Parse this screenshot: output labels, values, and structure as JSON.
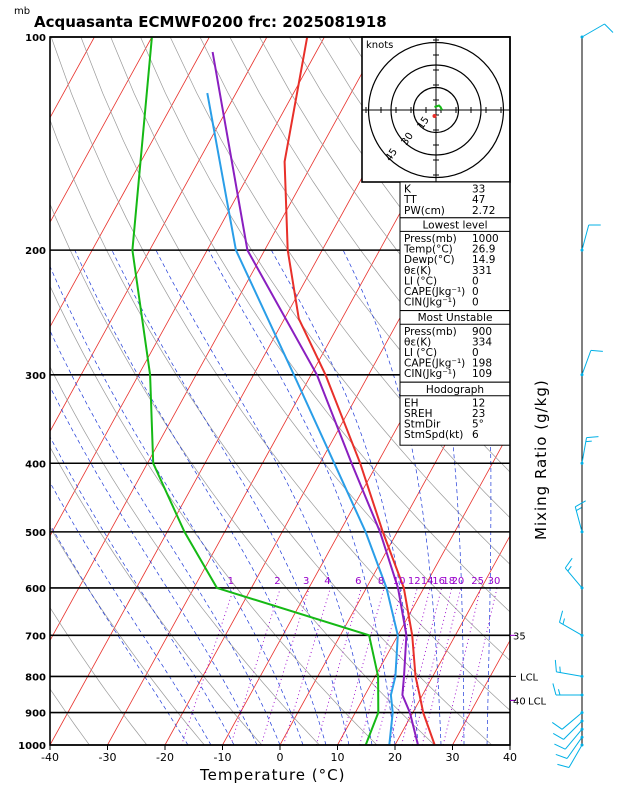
{
  "header": {
    "unit_label": "mb",
    "title": "Acquasanta ECMWF0200 frc: 2025081918"
  },
  "colors": {
    "temperature": "#e8302a",
    "dewpoint": "#15b915",
    "parcel": "#8a1fc0",
    "wetbulb": "#2a9ee8",
    "isotherm": "#e8302a",
    "dry_adiabat": "#9a9a9a",
    "moist_adiabat": "#1f3ad8",
    "mixing_ratio": "#9900cc",
    "wind": "#00b0e6"
  },
  "chart_data": {
    "type": "line",
    "title": "Acquasanta ECMWF0200 frc: 2025081918",
    "xlabel": "Temperature (°C)",
    "ylabel_right": "Mixing Ratio (g/kg)",
    "y_unit": "mb",
    "xlim": [
      -40,
      40
    ],
    "ylim": [
      1000,
      100
    ],
    "y_scale": "log",
    "x_ticks": [
      -40,
      -30,
      -20,
      -10,
      0,
      10,
      20,
      30,
      40
    ],
    "pressure_levels": [
      1000,
      900,
      800,
      700,
      600,
      500,
      400,
      300,
      200,
      100
    ],
    "pressure_labels": [
      "1000",
      "900",
      "800",
      "700",
      "600",
      "500",
      "400",
      "300",
      "200",
      "100"
    ],
    "mixing_ratio_labels": [
      "1",
      "2",
      "3",
      "4",
      "6",
      "8",
      "10",
      "12",
      "14",
      "16",
      "18",
      "20",
      "25",
      "30"
    ],
    "right_labels": {
      "lcl_upper": "LCL",
      "lcl_lower": "LCL",
      "v35": "35",
      "v40": "40"
    },
    "series": [
      {
        "name": "temperature",
        "points": [
          [
            1000,
            26.9
          ],
          [
            900,
            21.8
          ],
          [
            850,
            19.5
          ],
          [
            800,
            17.0
          ],
          [
            700,
            12.5
          ],
          [
            600,
            6.5
          ],
          [
            500,
            -2.5
          ],
          [
            400,
            -13.0
          ],
          [
            300,
            -27.5
          ],
          [
            250,
            -37.5
          ],
          [
            200,
            -46.0
          ],
          [
            150,
            -55.0
          ],
          [
            100,
            -63.0
          ]
        ]
      },
      {
        "name": "dewpoint",
        "points": [
          [
            1000,
            14.9
          ],
          [
            900,
            14.0
          ],
          [
            800,
            10.5
          ],
          [
            700,
            5.0
          ],
          [
            600,
            -26.0
          ],
          [
            500,
            -37.0
          ],
          [
            400,
            -49.0
          ],
          [
            300,
            -58.0
          ],
          [
            200,
            -73.0
          ],
          [
            100,
            -90.0
          ]
        ]
      },
      {
        "name": "wet bulb",
        "points": [
          [
            1000,
            19.0
          ],
          [
            900,
            16.5
          ],
          [
            850,
            14.5
          ],
          [
            800,
            13.5
          ],
          [
            700,
            10.0
          ],
          [
            600,
            3.5
          ],
          [
            500,
            -5.5
          ],
          [
            400,
            -17.5
          ],
          [
            300,
            -33.0
          ],
          [
            200,
            -55.0
          ],
          [
            120,
            -75.0
          ]
        ]
      },
      {
        "name": "parcel",
        "points": [
          [
            1000,
            24.0
          ],
          [
            900,
            19.5
          ],
          [
            850,
            16.5
          ],
          [
            800,
            15.0
          ],
          [
            700,
            11.5
          ],
          [
            600,
            5.5
          ],
          [
            500,
            -3.0
          ],
          [
            400,
            -14.5
          ],
          [
            300,
            -29.0
          ],
          [
            200,
            -53.0
          ],
          [
            105,
            -78.0
          ]
        ]
      }
    ],
    "winds": [
      {
        "p": 1000,
        "dir": 210,
        "spd": 10
      },
      {
        "p": 975,
        "dir": 215,
        "spd": 10
      },
      {
        "p": 950,
        "dir": 220,
        "spd": 10
      },
      {
        "p": 925,
        "dir": 225,
        "spd": 10
      },
      {
        "p": 900,
        "dir": 230,
        "spd": 10
      },
      {
        "p": 850,
        "dir": 270,
        "spd": 5
      },
      {
        "p": 800,
        "dir": 280,
        "spd": 5
      },
      {
        "p": 700,
        "dir": 300,
        "spd": 5
      },
      {
        "p": 600,
        "dir": 320,
        "spd": 5
      },
      {
        "p": 500,
        "dir": 345,
        "spd": 5
      },
      {
        "p": 400,
        "dir": 10,
        "spd": 5
      },
      {
        "p": 300,
        "dir": 20,
        "spd": 10
      },
      {
        "p": 200,
        "dir": 15,
        "spd": 10
      },
      {
        "p": 100,
        "dir": 60,
        "spd": 10
      }
    ]
  },
  "hodograph": {
    "unit": "knots",
    "ring_labels": [
      "15",
      "30",
      "45"
    ],
    "rings": [
      15,
      30,
      45
    ],
    "trace": [
      [
        -1,
        2
      ],
      [
        2,
        3
      ],
      [
        3,
        2
      ],
      [
        4,
        0
      ]
    ]
  },
  "stats": {
    "top": [
      {
        "label": "K",
        "value": "33"
      },
      {
        "label": "TT",
        "value": "47"
      },
      {
        "label": "PW(cm)",
        "value": "2.72"
      }
    ],
    "lowest_title": "Lowest level",
    "lowest": [
      {
        "label": "Press(mb)",
        "value": "1000"
      },
      {
        "label": "Temp(°C)",
        "value": "26.9"
      },
      {
        "label": "Dewp(°C)",
        "value": "14.9"
      },
      {
        "label": "θε(K)",
        "value": "331"
      },
      {
        "label": "LI (°C)",
        "value": "0"
      },
      {
        "label": "CAPE(Jkg⁻¹)",
        "value": "0"
      },
      {
        "label": "CIN(Jkg⁻¹)",
        "value": "0"
      }
    ],
    "unstable_title": "Most Unstable",
    "unstable": [
      {
        "label": "Press(mb)",
        "value": "900"
      },
      {
        "label": "θε(K)",
        "value": "334"
      },
      {
        "label": "LI (°C)",
        "value": "0"
      },
      {
        "label": "CAPE(Jkg⁻¹)",
        "value": "198"
      },
      {
        "label": "CIN(Jkg⁻¹)",
        "value": "109"
      }
    ],
    "hodo_title": "Hodograph",
    "hodo": [
      {
        "label": "EH",
        "value": "12"
      },
      {
        "label": "SREH",
        "value": "23"
      },
      {
        "label": "StmDir",
        "value": "5°"
      },
      {
        "label": "StmSpd(kt)",
        "value": "6"
      }
    ]
  }
}
